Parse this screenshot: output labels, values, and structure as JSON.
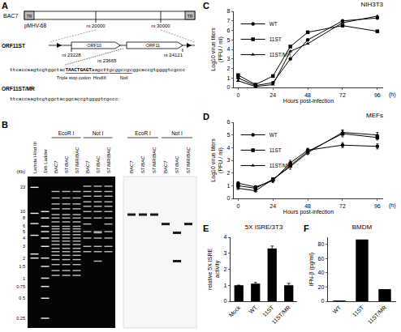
{
  "diagram": {
    "label": "A",
    "bac": "BAC7",
    "tr": "TR",
    "plasmid": "pMHV-68",
    "positions": [
      "nt 20000",
      "nt 30000"
    ],
    "orfs": [
      "ORF10",
      "ORF11"
    ],
    "nt_left": "nt 23228",
    "nt_right": "nt 24121",
    "nt_stop": "nt 23665",
    "construct1": "ORF11ST",
    "sequence1": [
      "ttcaccaagtcgtggctac",
      "TAACTGAGT",
      "aagctt",
      "gcggccgc",
      "ggcaccgtggggtcgccc"
    ],
    "sites": [
      "Triple stop codon",
      "HindIII",
      "NotI"
    ],
    "construct2": "ORF11ST/MR",
    "sequence2": [
      "ttcaccaagtcgtggctac",
      "ggcaccgtggggtcgccc"
    ]
  },
  "gel": {
    "label": "B",
    "unit": "(Kb)",
    "size_labels": [
      23,
      10,
      8,
      6,
      5,
      4,
      3,
      2,
      1.5,
      1,
      0.75,
      0.5,
      0.25
    ],
    "markers": [
      {
        "name": "Lamda Hind III",
        "bands": [
          23.1,
          9.4,
          6.6,
          4.4,
          2.3,
          2.0
        ]
      },
      {
        "name": "1kb Ladder",
        "bands": [
          10,
          8,
          6,
          5,
          4,
          3,
          2,
          1.5,
          1,
          0.75,
          0.5,
          0.25
        ]
      }
    ],
    "groups": [
      {
        "enzyme": "EcoR I",
        "lanes": [
          {
            "name": "BAC7",
            "bands": [
              20,
              16,
              13,
              11,
              9,
              8,
              7,
              6,
              5.5,
              5,
              4.5,
              4,
              3.6,
              3.2,
              2.8,
              2.5,
              2.2,
              1.9,
              1.6,
              1.3,
              1.1
            ]
          },
          {
            "name": "ST/BAC",
            "bands": [
              20,
              16,
              13,
              11,
              9,
              8,
              7,
              6,
              5.5,
              5,
              4.5,
              4,
              3.6,
              3.2,
              2.8,
              2.5,
              2.2,
              1.9,
              1.6,
              1.3,
              1.1
            ]
          },
          {
            "name": "ST/MR/BAC",
            "bands": [
              20,
              16,
              13,
              11,
              9,
              8,
              7,
              6,
              5.5,
              5,
              4.5,
              4,
              3.6,
              3.2,
              2.8,
              2.5,
              2.2,
              1.9,
              1.6,
              1.3,
              1.1
            ]
          }
        ]
      },
      {
        "enzyme": "Not I",
        "lanes": [
          {
            "name": "BAC7",
            "bands": [
              24,
              20,
              17,
              14,
              12,
              10,
              8,
              6.5,
              5,
              4,
              3,
              2.5
            ]
          },
          {
            "name": "ST/BAC",
            "bands": [
              24,
              20,
              17,
              14,
              12,
              10,
              8,
              5,
              4.8,
              4,
              3,
              2.5,
              1.8
            ]
          },
          {
            "name": "ST/MR/BAC",
            "bands": [
              24,
              20,
              17,
              14,
              12,
              10,
              8,
              6.5,
              5,
              4,
              3,
              2.5
            ]
          }
        ]
      }
    ],
    "blot": [
      {
        "enzyme": "EcoR I",
        "lanes": [
          {
            "name": "BAC7",
            "bands": [
              9
            ]
          },
          {
            "name": "ST/BAC",
            "bands": [
              9
            ]
          },
          {
            "name": "ST/MR/BAC",
            "bands": [
              9
            ]
          }
        ]
      },
      {
        "enzyme": "Not I",
        "lanes": [
          {
            "name": "BAC7",
            "bands": [
              6.5
            ]
          },
          {
            "name": "ST/BAC",
            "bands": [
              4.8,
              1.8
            ]
          },
          {
            "name": "ST/MR/BAC",
            "bands": [
              6.5
            ]
          }
        ]
      }
    ]
  },
  "chart_data": [
    {
      "panel": "C",
      "type": "line",
      "title": "NIH3T3",
      "x_label": "Hours post-infection",
      "y_label": "Log10 virus titers (PFU / ml)",
      "annotations": [
        "(h)"
      ],
      "x": [
        0,
        12,
        24,
        36,
        48,
        72,
        96
      ],
      "series": [
        {
          "name": "WT",
          "color": "#000000",
          "marker": "circle",
          "values": [
            1.0,
            0.2,
            0.5,
            3.0,
            5.0,
            7.0,
            7.3
          ]
        },
        {
          "name": "11ST",
          "color": "#000000",
          "marker": "square",
          "values": [
            1.3,
            0.3,
            1.2,
            4.3,
            5.8,
            6.5,
            5.9
          ]
        },
        {
          "name": "11ST/MR",
          "color": "#000000",
          "marker": "triangle",
          "values": [
            0.7,
            0.1,
            0.3,
            3.8,
            4.6,
            6.8,
            7.5
          ]
        }
      ],
      "xlim": [
        -3,
        100
      ],
      "xticks": [
        0,
        24,
        48,
        72,
        96
      ],
      "ylim": [
        0,
        8
      ],
      "yticks": [
        0,
        1,
        2,
        3,
        4,
        5,
        6,
        7,
        8
      ],
      "grid": false,
      "legend": "upper left"
    },
    {
      "panel": "D",
      "type": "line",
      "title": "MEFs",
      "x_label": "Hours post-infection",
      "y_label": "Log10 virus titers (PFU / ml)",
      "annotations": [
        "(h)"
      ],
      "x": [
        0,
        12,
        24,
        36,
        48,
        72,
        96
      ],
      "series": [
        {
          "name": "WT",
          "color": "#000000",
          "marker": "circle",
          "values": [
            1.2,
            0.9,
            1.4,
            2.8,
            3.8,
            4.2,
            4.1
          ],
          "errors": [
            0.1,
            0.1,
            0.15,
            0.2,
            0.15,
            0.2,
            0.2
          ]
        },
        {
          "name": "11ST",
          "color": "#000000",
          "marker": "square",
          "values": [
            1.0,
            0.8,
            1.5,
            2.6,
            3.7,
            5.1,
            4.8
          ],
          "errors": [
            0.1,
            0.1,
            0.1,
            0.15,
            0.2,
            0.25,
            0.2
          ]
        },
        {
          "name": "11ST/MR",
          "color": "#000000",
          "marker": "triangle",
          "values": [
            0.8,
            0.6,
            1.5,
            2.5,
            3.6,
            5.2,
            5.0
          ],
          "errors": [
            0.1,
            0.1,
            0.1,
            0.2,
            0.15,
            0.2,
            0.2
          ]
        }
      ],
      "xlim": [
        -3,
        100
      ],
      "xticks": [
        0,
        24,
        48,
        72,
        96
      ],
      "ylim": [
        0,
        6
      ],
      "yticks": [
        0,
        1,
        2,
        3,
        4,
        5,
        6
      ],
      "grid": false,
      "legend": "upper left"
    },
    {
      "panel": "E",
      "type": "bar",
      "title": "5X ISRE/3T3",
      "y_label": "relative 5X ISRE activity",
      "categories": [
        "Mock",
        "WT",
        "11ST",
        "11ST/MR"
      ],
      "values": [
        1.0,
        1.1,
        3.3,
        1.0
      ],
      "errors": [
        0,
        0.08,
        0.15,
        0.12
      ],
      "color": "#000000",
      "ylim": [
        0,
        4
      ],
      "yticks": [
        0,
        1,
        2,
        3,
        4
      ],
      "grid": false
    },
    {
      "panel": "F",
      "type": "bar",
      "title": "BMDM",
      "y_label": "IFN-β (pg/ml)",
      "categories": [
        "WT",
        "11ST",
        "11ST/MR"
      ],
      "values": [
        1,
        87,
        17
      ],
      "color": "#000000",
      "ylim": [
        0,
        90
      ],
      "yticks": [
        0,
        20,
        40,
        60,
        80
      ],
      "grid": false
    }
  ]
}
